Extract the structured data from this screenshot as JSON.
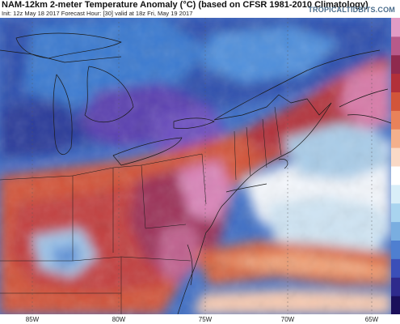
{
  "header": {
    "title": "NAM-12km 2-meter Temperature Anomaly (°C) (based on CFSR 1981-2010 Climatology)",
    "subtitle": "Init: 12z May 18 2017   Forecast Hour: [30]   valid at 18z Fri, May 19 2017",
    "brand": "TROPICALTIDBITS.COM"
  },
  "axis": {
    "longitudes": [
      {
        "label": "85W"
      },
      {
        "label": "80W"
      },
      {
        "label": "75W"
      },
      {
        "label": "70W"
      },
      {
        "label": "65W"
      }
    ]
  },
  "legend": {
    "colors": [
      "#1a0f5a",
      "#2e2a8c",
      "#3b4fb8",
      "#4f7fd0",
      "#7aaee0",
      "#a9d4ef",
      "#d9eef8",
      "#ffffff",
      "#f9d9c6",
      "#f3b08c",
      "#e8825a",
      "#d2553a",
      "#b2303a",
      "#8f2a4e",
      "#b85a8a",
      "#e39bc4"
    ]
  },
  "map": {
    "variable": "2-meter temperature anomaly",
    "units": "°C",
    "region": "Northeastern US and southeastern Canada",
    "colors": {
      "deep_cold": "#2b3a9a",
      "cold": "#3f6fc6",
      "cool": "#7fb2e3",
      "neutral": "#f5f7fb",
      "warm": "#f0a47a",
      "hot": "#cf4a3a",
      "very_hot": "#9c2f5c",
      "extreme": "#e08fc0"
    }
  }
}
